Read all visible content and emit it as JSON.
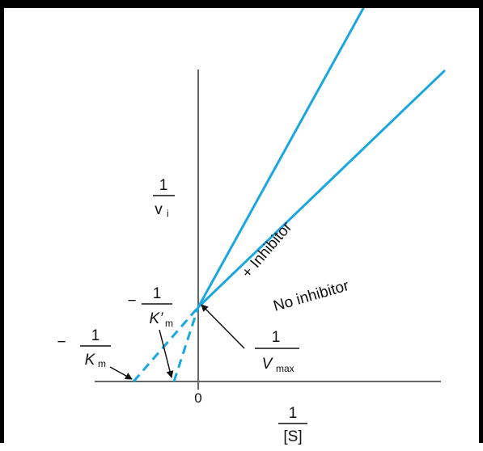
{
  "chart_data": {
    "type": "line",
    "title": "",
    "xlabel": {
      "num": "1",
      "den": "[S]"
    },
    "ylabel": {
      "num": "1",
      "den_main": "v",
      "den_sub": "i"
    },
    "xlim": [
      -2.2,
      7.8
    ],
    "ylim": [
      -0.45,
      3.9
    ],
    "grid": false,
    "origin_tick_label": "0",
    "line_color": "#1aa7e0",
    "series": [
      {
        "name": "+ Inhibitor",
        "solid": {
          "x": [
            0,
            7.6
          ],
          "y": [
            0.55,
            3.85
          ]
        },
        "extrapolated": {
          "x": [
            -0.75,
            0
          ],
          "y": [
            0,
            0.55
          ]
        }
      },
      {
        "name": "No inhibitor",
        "solid": {
          "x": [
            0,
            7.6
          ],
          "y": [
            0.55,
            2.3
          ]
        },
        "extrapolated": {
          "x": [
            -2.0,
            0
          ],
          "y": [
            0,
            0.55
          ]
        }
      }
    ],
    "annotations": [
      {
        "id": "km",
        "sign": "−",
        "num": "1",
        "den_main": "K",
        "den_sub": "m",
        "points_to": [
          -2.0,
          0
        ]
      },
      {
        "id": "km-prime",
        "sign": "−",
        "num": "1",
        "den_main": "K’",
        "den_sub": "m",
        "points_to": [
          -0.75,
          0
        ]
      },
      {
        "id": "vmax",
        "sign": "",
        "num": "1",
        "den_main": "V",
        "den_sub": "max",
        "points_to": [
          0,
          0.55
        ]
      }
    ]
  }
}
